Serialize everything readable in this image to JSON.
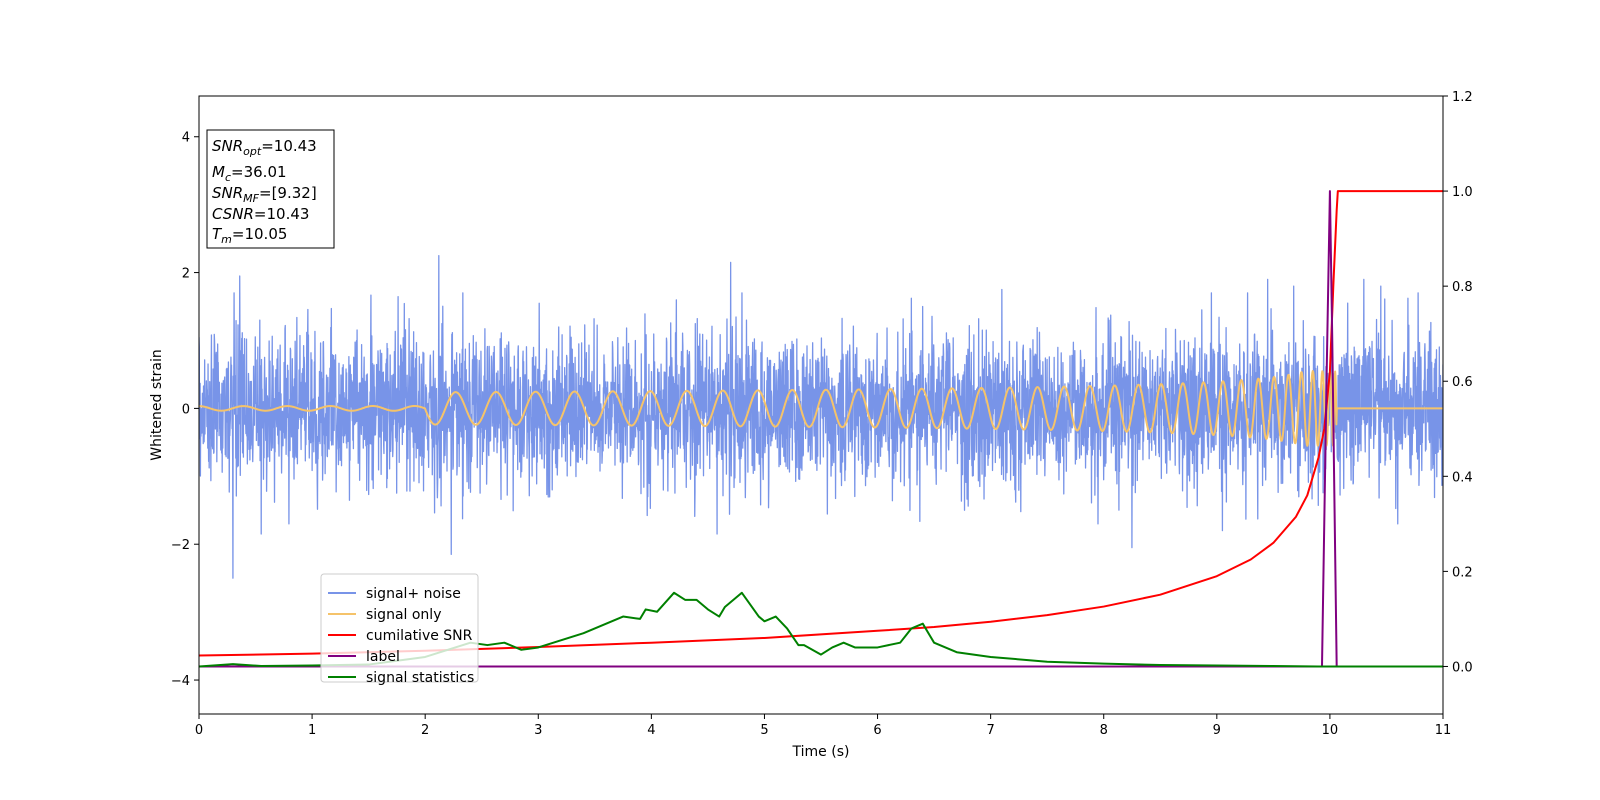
{
  "chart_data": {
    "type": "line",
    "xlabel": "Time (s)",
    "ylabel": "Whitened strain",
    "xlim": [
      0,
      11
    ],
    "ylim": [
      -4.5,
      4.6
    ],
    "ylim_right": [
      -0.1,
      1.2
    ],
    "x_ticks": [
      0,
      1,
      2,
      3,
      4,
      5,
      6,
      7,
      8,
      9,
      10,
      11
    ],
    "y_ticks": [
      -4,
      -2,
      0,
      2,
      4
    ],
    "y_ticks_right": [
      0.0,
      0.2,
      0.4,
      0.6,
      0.8,
      1.0,
      1.2
    ],
    "x_tick_labels": [
      "0",
      "1",
      "2",
      "3",
      "4",
      "5",
      "6",
      "7",
      "8",
      "9",
      "10",
      "11"
    ],
    "y_tick_labels": [
      "−4",
      "−2",
      "0",
      "2",
      "4"
    ],
    "y_tick_labels_right": [
      "0.0",
      "0.2",
      "0.4",
      "0.6",
      "0.8",
      "1.0",
      "1.2"
    ],
    "grid": false,
    "legend_position": "lower-left",
    "info_box": [
      {
        "main": "SNR",
        "sub": "opt",
        "rest": "=10.43"
      },
      {
        "main": "M",
        "sub": "c",
        "rest": "=36.01"
      },
      {
        "main": "SNR",
        "sub": "MF",
        "rest": "=[9.32]"
      },
      {
        "main": "CSNR",
        "sub": "",
        "rest": "=10.43"
      },
      {
        "main": "T",
        "sub": "m",
        "rest": "=10.05"
      }
    ],
    "series": [
      {
        "name": "signal+ noise",
        "axis": "left",
        "color": "#7894e8",
        "kind": "noise",
        "sigma": 0.55,
        "peak_values": [
          [
            0.0,
            1.05
          ],
          [
            0.3,
            -2.5
          ],
          [
            0.36,
            1.95
          ],
          [
            0.55,
            -1.85
          ],
          [
            2.12,
            2.25
          ],
          [
            2.23,
            -2.15
          ],
          [
            4.58,
            -1.85
          ],
          [
            4.7,
            2.15
          ],
          [
            6.4,
            1.5
          ],
          [
            7.1,
            1.75
          ],
          [
            8.25,
            -2.05
          ],
          [
            9.05,
            -1.8
          ],
          [
            9.45,
            1.9
          ],
          [
            9.68,
            1.8
          ],
          [
            10.3,
            1.9
          ],
          [
            10.45,
            1.8
          ],
          [
            10.78,
            1.7
          ]
        ]
      },
      {
        "name": "signal only",
        "axis": "left",
        "color": "#f5c36a",
        "kind": "chirp",
        "merger_time": 10.05,
        "peak_amplitude": 0.55
      },
      {
        "name": "cumilative SNR",
        "axis": "right",
        "color": "#ff0000",
        "kind": "line",
        "x": [
          0,
          1,
          2,
          3,
          4,
          5,
          6,
          6.5,
          7,
          7.5,
          8,
          8.5,
          9,
          9.3,
          9.5,
          9.7,
          9.8,
          9.9,
          9.95,
          10.0,
          10.03,
          10.06,
          10.07,
          11
        ],
        "y": [
          0.023,
          0.027,
          0.033,
          0.041,
          0.05,
          0.06,
          0.075,
          0.083,
          0.094,
          0.108,
          0.126,
          0.151,
          0.19,
          0.225,
          0.26,
          0.315,
          0.36,
          0.44,
          0.5,
          0.62,
          0.8,
          0.96,
          1.0,
          1.0
        ]
      },
      {
        "name": "label",
        "axis": "right",
        "color": "#800080",
        "kind": "line",
        "x": [
          0,
          9.93,
          9.97,
          10.0,
          10.02,
          10.06,
          11
        ],
        "y": [
          0,
          0,
          0.6,
          1.0,
          0.7,
          0,
          0
        ]
      },
      {
        "name": "signal statistics",
        "axis": "right",
        "color": "#008000",
        "kind": "line",
        "x": [
          0,
          0.3,
          0.55,
          1.0,
          1.5,
          2.0,
          2.4,
          2.55,
          2.7,
          2.85,
          3.0,
          3.2,
          3.4,
          3.6,
          3.75,
          3.9,
          3.95,
          4.05,
          4.2,
          4.3,
          4.4,
          4.5,
          4.6,
          4.65,
          4.8,
          4.95,
          5.0,
          5.1,
          5.2,
          5.3,
          5.35,
          5.5,
          5.6,
          5.7,
          5.8,
          5.9,
          6.0,
          6.2,
          6.3,
          6.4,
          6.5,
          6.7,
          7.0,
          7.5,
          8.0,
          8.5,
          9.0,
          9.5,
          9.9,
          10.1,
          11.0
        ],
        "y": [
          0.0,
          0.005,
          0.001,
          0.002,
          0.004,
          0.02,
          0.05,
          0.045,
          0.05,
          0.035,
          0.04,
          0.055,
          0.07,
          0.09,
          0.105,
          0.1,
          0.12,
          0.115,
          0.155,
          0.14,
          0.14,
          0.12,
          0.105,
          0.125,
          0.155,
          0.105,
          0.095,
          0.105,
          0.08,
          0.045,
          0.045,
          0.025,
          0.04,
          0.05,
          0.04,
          0.04,
          0.04,
          0.05,
          0.08,
          0.09,
          0.05,
          0.03,
          0.02,
          0.01,
          0.006,
          0.003,
          0.002,
          0.001,
          0.0,
          0.0,
          0.0
        ]
      }
    ]
  }
}
